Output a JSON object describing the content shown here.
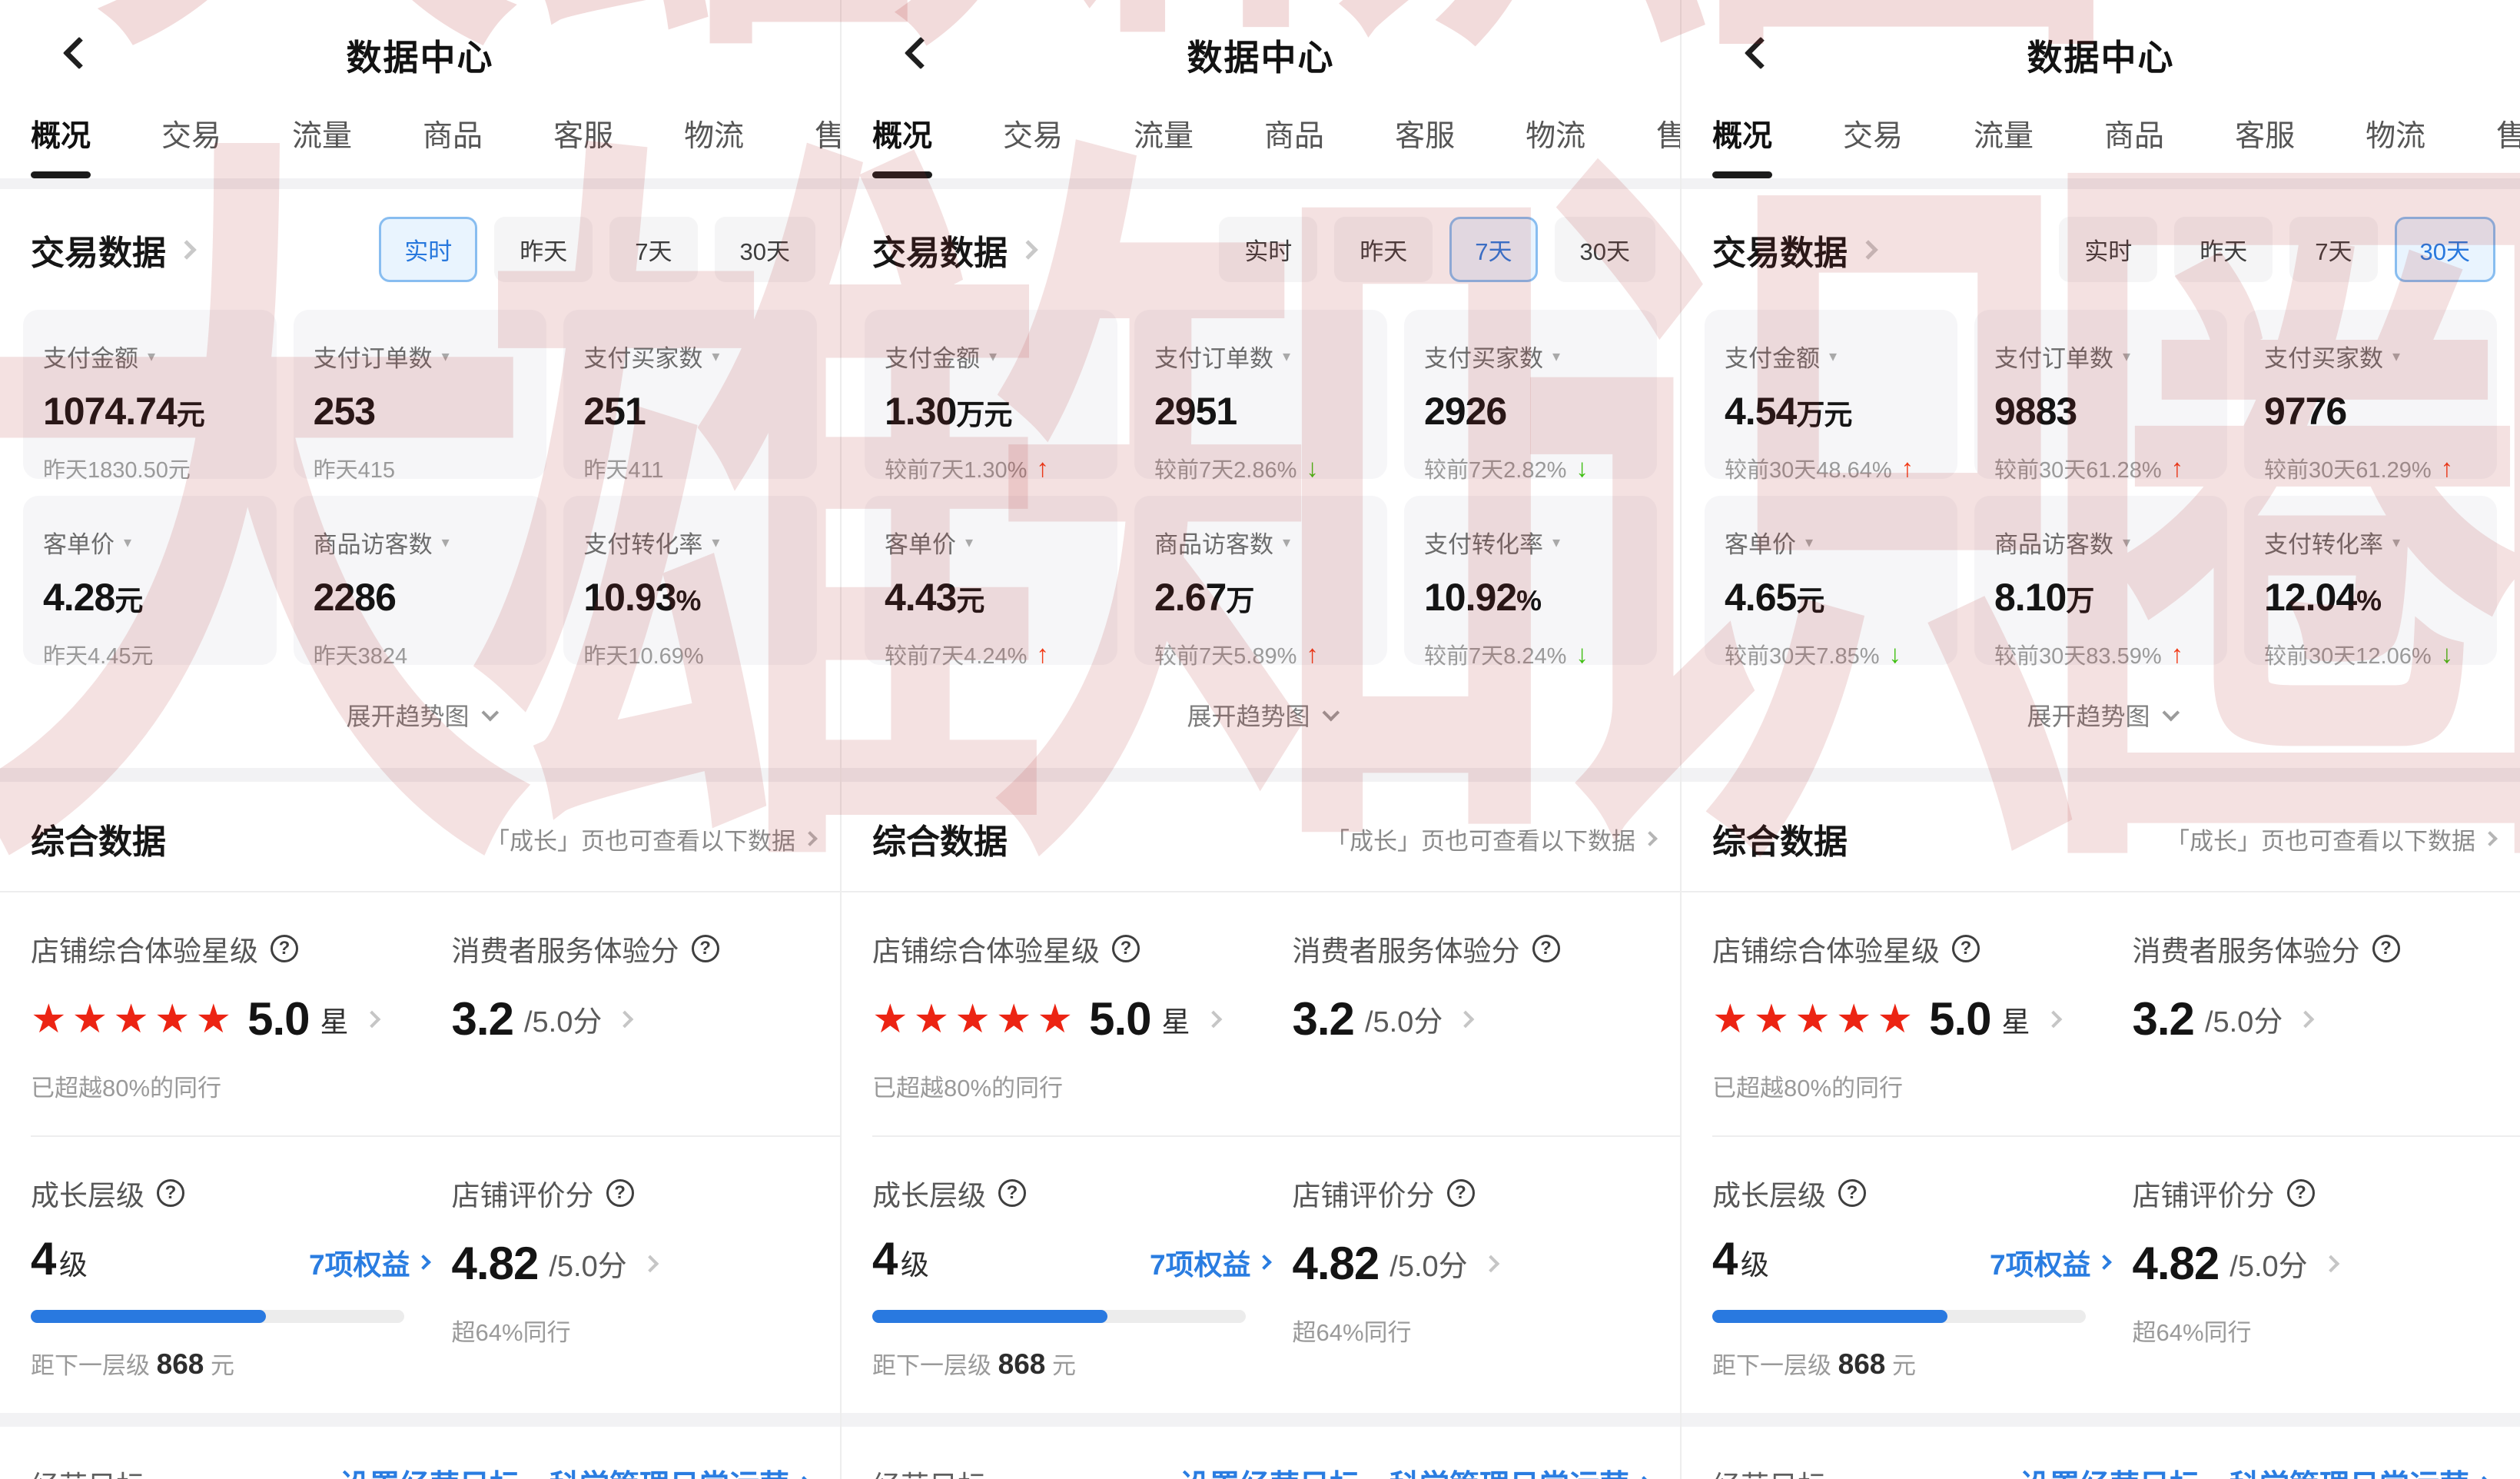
{
  "app": {
    "title": "数据中心"
  },
  "tabs": [
    "概况",
    "交易",
    "流量",
    "商品",
    "客服",
    "物流",
    "售"
  ],
  "trade": {
    "title": "交易数据",
    "expand_label": "展开趋势图"
  },
  "panels": [
    {
      "period": "realtime",
      "filters": [
        {
          "label": "实时",
          "state": "active"
        },
        {
          "label": "昨天",
          "state": ""
        },
        {
          "label": "7天",
          "state": ""
        },
        {
          "label": "30天",
          "state": ""
        }
      ],
      "metrics": [
        {
          "label": "支付金额",
          "value": "1074.74",
          "unit": "元",
          "sub": "昨天1830.50元",
          "arrow": "",
          "trend": ""
        },
        {
          "label": "支付订单数",
          "value": "253",
          "unit": "",
          "sub": "昨天415",
          "arrow": "",
          "trend": ""
        },
        {
          "label": "支付买家数",
          "value": "251",
          "unit": "",
          "sub": "昨天411",
          "arrow": "",
          "trend": ""
        },
        {
          "label": "客单价",
          "value": "4.28",
          "unit": "元",
          "sub": "昨天4.45元",
          "arrow": "",
          "trend": ""
        },
        {
          "label": "商品访客数",
          "value": "2286",
          "unit": "",
          "sub": "昨天3824",
          "arrow": "",
          "trend": ""
        },
        {
          "label": "支付转化率",
          "value": "10.93",
          "unit": "%",
          "sub": "昨天10.69%",
          "arrow": "",
          "trend": ""
        }
      ]
    },
    {
      "period": "7day",
      "filters": [
        {
          "label": "实时",
          "state": ""
        },
        {
          "label": "昨天",
          "state": ""
        },
        {
          "label": "7天",
          "state": "active"
        },
        {
          "label": "30天",
          "state": ""
        }
      ],
      "metrics": [
        {
          "label": "支付金额",
          "value": "1.30",
          "unit": "万元",
          "sub": "较前7天1.30%",
          "arrow": "↑",
          "trend": "up"
        },
        {
          "label": "支付订单数",
          "value": "2951",
          "unit": "",
          "sub": "较前7天2.86%",
          "arrow": "↓",
          "trend": "down"
        },
        {
          "label": "支付买家数",
          "value": "2926",
          "unit": "",
          "sub": "较前7天2.82%",
          "arrow": "↓",
          "trend": "down"
        },
        {
          "label": "客单价",
          "value": "4.43",
          "unit": "元",
          "sub": "较前7天4.24%",
          "arrow": "↑",
          "trend": "up"
        },
        {
          "label": "商品访客数",
          "value": "2.67",
          "unit": "万",
          "sub": "较前7天5.89%",
          "arrow": "↑",
          "trend": "up"
        },
        {
          "label": "支付转化率",
          "value": "10.92",
          "unit": "%",
          "sub": "较前7天8.24%",
          "arrow": "↓",
          "trend": "down"
        }
      ]
    },
    {
      "period": "30day",
      "filters": [
        {
          "label": "实时",
          "state": ""
        },
        {
          "label": "昨天",
          "state": ""
        },
        {
          "label": "7天",
          "state": ""
        },
        {
          "label": "30天",
          "state": "active"
        }
      ],
      "metrics": [
        {
          "label": "支付金额",
          "value": "4.54",
          "unit": "万元",
          "sub": "较前30天48.64%",
          "arrow": "↑",
          "trend": "up"
        },
        {
          "label": "支付订单数",
          "value": "9883",
          "unit": "",
          "sub": "较前30天61.28%",
          "arrow": "↑",
          "trend": "up"
        },
        {
          "label": "支付买家数",
          "value": "9776",
          "unit": "",
          "sub": "较前30天61.29%",
          "arrow": "↑",
          "trend": "up"
        },
        {
          "label": "客单价",
          "value": "4.65",
          "unit": "元",
          "sub": "较前30天7.85%",
          "arrow": "↓",
          "trend": "down"
        },
        {
          "label": "商品访客数",
          "value": "8.10",
          "unit": "万",
          "sub": "较前30天83.59%",
          "arrow": "↑",
          "trend": "up"
        },
        {
          "label": "支付转化率",
          "value": "12.04",
          "unit": "%",
          "sub": "较前30天12.06%",
          "arrow": "↓",
          "trend": "down"
        }
      ]
    }
  ],
  "summary": {
    "title": "综合数据",
    "link": "「成长」页也可查看以下数据",
    "star_card": {
      "label": "店铺综合体验星级",
      "stars": "★★★★★",
      "value": "5.0",
      "unit": "星",
      "sub": "已超越80%的同行"
    },
    "service_card": {
      "label": "消费者服务体验分",
      "value": "3.2",
      "suffix": "/5.0分"
    },
    "growth_card": {
      "label": "成长层级",
      "value": "4",
      "unit": "级",
      "benefit": "7项权益",
      "progress": "63%",
      "sub_prefix": "距下一层级",
      "sub_value": "868",
      "sub_unit": "元"
    },
    "rating_card": {
      "label": "店铺评价分",
      "value": "4.82",
      "suffix": "/5.0分",
      "sub": "超64%同行"
    }
  },
  "goal": {
    "label": "经营目标",
    "link": "设置经营目标，科学管理日常运营"
  },
  "watermark": "大雄知识圈",
  "colors": {
    "accent_blue": "#2A7DE1",
    "up_red": "#F23A16",
    "down_green": "#3FBF12",
    "star_red": "#EC2413",
    "selected_filter_bg": "#E9F4FE",
    "selected_filter_border": "#88BDF0",
    "card_bg": "#F6F6F8",
    "watermark_red": "#B22C2C"
  }
}
